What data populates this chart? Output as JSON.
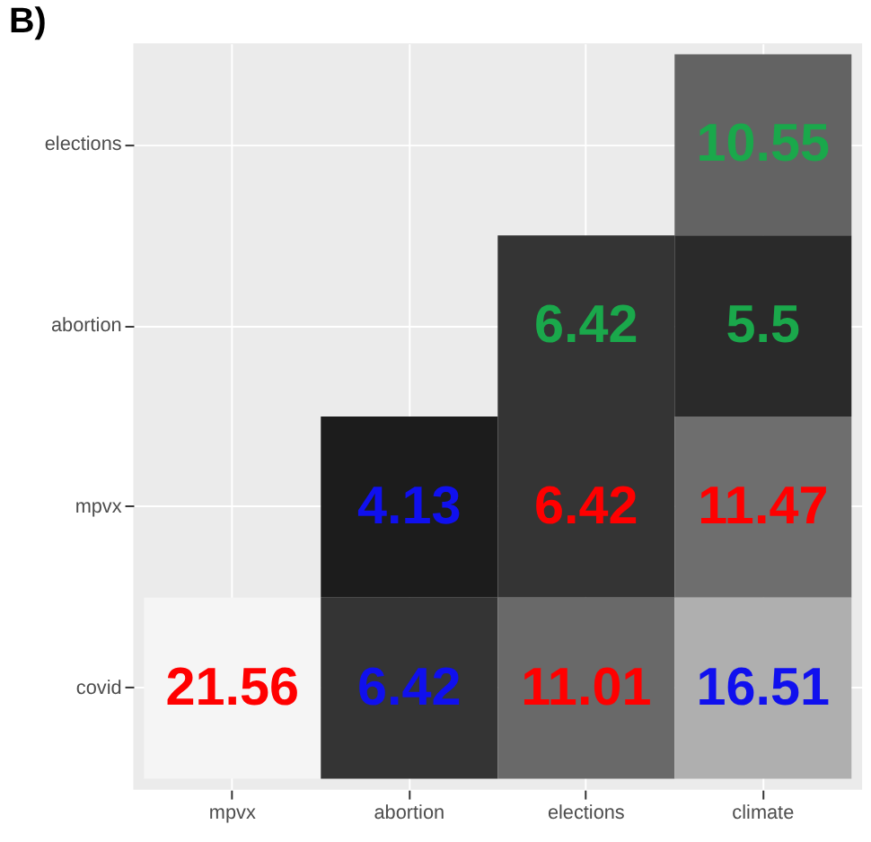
{
  "chart_data": {
    "type": "heatmap",
    "title": "B)",
    "categories": [
      "mpvx",
      "abortion",
      "elections",
      "climate"
    ],
    "y_categories": [
      "elections",
      "abortion",
      "mpvx",
      "covid"
    ],
    "cells": [
      [
        null,
        null,
        null,
        10.55
      ],
      [
        null,
        null,
        6.42,
        5.5
      ],
      [
        null,
        4.13,
        6.42,
        11.47
      ],
      [
        21.56,
        6.42,
        11.01,
        16.51
      ]
    ],
    "colors": [
      [
        null,
        null,
        null,
        "#1aa84b"
      ],
      [
        null,
        null,
        "#1aa84b",
        "#1aa84b"
      ],
      [
        null,
        "#1010ee",
        "#ff0000",
        "#ff0000"
      ],
      [
        "#ff0000",
        "#1010ee",
        "#ff0000",
        "#1010ee"
      ]
    ],
    "grid": true,
    "data_labels": true
  }
}
